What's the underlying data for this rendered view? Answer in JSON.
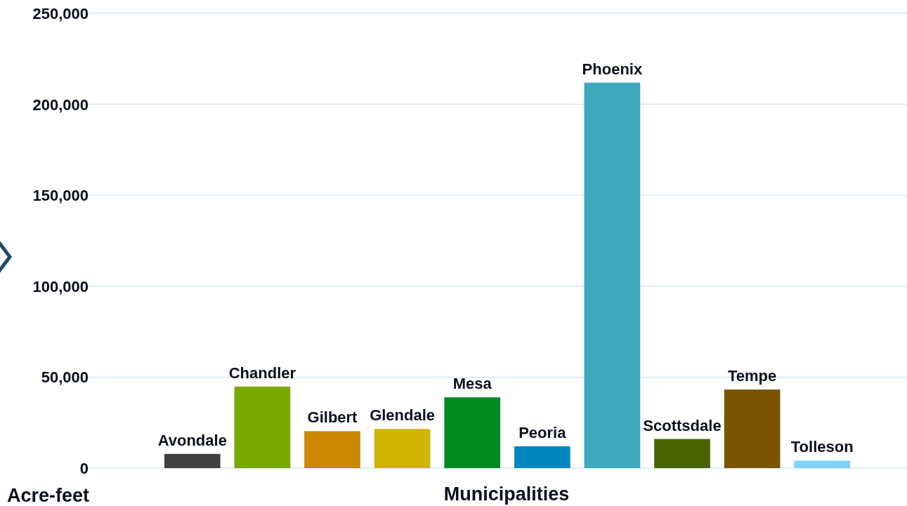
{
  "chart_data": {
    "type": "bar",
    "categories": [
      "Avondale",
      "Chandler",
      "Gilbert",
      "Glendale",
      "Mesa",
      "Peoria",
      "Phoenix",
      "Scottsdale",
      "Tempe",
      "Tolleson"
    ],
    "values": [
      7800,
      44800,
      20300,
      21500,
      38900,
      12000,
      211900,
      16000,
      43200,
      4100
    ],
    "colors": [
      "#404040",
      "#78a800",
      "#cc8800",
      "#d0b400",
      "#008a22",
      "#0086c0",
      "#3ea8bc",
      "#476400",
      "#7a5400",
      "#80d4fc"
    ],
    "xlabel": "Municipalities",
    "ylabel": "Acre-feet",
    "ylim": [
      0,
      250000
    ],
    "yticks": [
      {
        "value": 0,
        "label": "0"
      },
      {
        "value": 50000,
        "label": "50,000"
      },
      {
        "value": 100000,
        "label": "100,000"
      },
      {
        "value": 150000,
        "label": "150,000"
      },
      {
        "value": 200000,
        "label": "200,000"
      },
      {
        "value": 250000,
        "label": "250,000"
      }
    ],
    "grid": "y"
  }
}
